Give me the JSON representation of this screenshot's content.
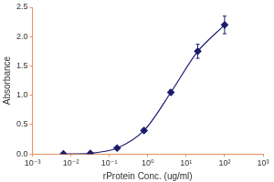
{
  "chart_data": {
    "type": "line",
    "x_label": "rProtein Conc. (ug/ml)",
    "y_label": "Absorbance",
    "log": "x",
    "grid": false,
    "xlim": [
      0.001,
      1000
    ],
    "xticks": [
      {
        "value": 0.001,
        "label": "10⁻³"
      },
      {
        "value": 0.01,
        "label": "10⁻²"
      },
      {
        "value": 0.1,
        "label": "10⁻¹"
      },
      {
        "value": 1,
        "label": "10⁰"
      },
      {
        "value": 10,
        "label": "10¹"
      },
      {
        "value": 100,
        "label": "10²"
      },
      {
        "value": 1000,
        "label": "10³"
      }
    ],
    "ylim": [
      0,
      2.5
    ],
    "yticks": [
      {
        "value": 0,
        "label": "0.0"
      },
      {
        "value": 0.5,
        "label": "0.5"
      },
      {
        "value": 1,
        "label": "1.0"
      },
      {
        "value": 1.5,
        "label": "1.5"
      },
      {
        "value": 2,
        "label": "2.0"
      },
      {
        "value": 2.5,
        "label": "2.5"
      }
    ],
    "x": [
      0.0064,
      0.032,
      0.16,
      0.8,
      4,
      20,
      100
    ],
    "values": [
      0.0,
      0.01,
      0.1,
      0.4,
      1.05,
      1.75,
      2.2
    ],
    "errors": [
      0.01,
      0.01,
      0.02,
      0.03,
      0.04,
      0.12,
      0.15
    ],
    "color": "#1c1c6e",
    "marker": "diamond",
    "line_style": "solid"
  }
}
